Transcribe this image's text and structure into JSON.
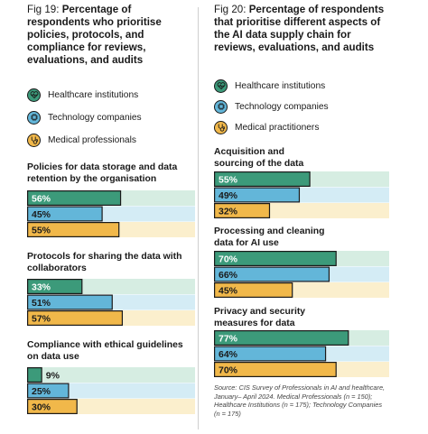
{
  "colors": {
    "healthcare": "#3c9a7a",
    "technology": "#63b6d9",
    "medical": "#f1b84a",
    "track_healthcare": "#d6ede2",
    "track_technology": "#d4ecf5",
    "track_medical": "#fbefcd",
    "border": "#1a1a1a"
  },
  "left": {
    "fig_num": "Fig 19:",
    "title": "Percentage of respondents who prioritise policies, protocols, and compliance for reviews, evaluations, and audits",
    "legend": [
      {
        "label": "Healthcare institutions",
        "icon": "heart-pulse-icon",
        "color_key": "healthcare"
      },
      {
        "label": "Technology companies",
        "icon": "chip-icon",
        "color_key": "technology"
      },
      {
        "label": "Medical professionals",
        "icon": "stethoscope-icon",
        "color_key": "medical"
      }
    ]
  },
  "right": {
    "fig_num": "Fig 20:",
    "title": "Percentage of respondents that prioritise different aspects of the AI data supply chain for reviews, evaluations, and audits",
    "legend": [
      {
        "label": "Healthcare institutions",
        "icon": "heart-pulse-icon",
        "color_key": "healthcare"
      },
      {
        "label": "Technology companies",
        "icon": "chip-icon",
        "color_key": "technology"
      },
      {
        "label": "Medical practitioners",
        "icon": "stethoscope-icon",
        "color_key": "medical"
      }
    ],
    "source": "Source: CIS Survey of Professionals in AI and healthcare, January– April 2024. Medical Professionals (n = 150); Healthcare Institutions (n = 175); Technology Companies (n = 175)"
  },
  "chart_data": [
    {
      "type": "bar",
      "orientation": "horizontal",
      "title": "Policies for data storage and data retention by the organisation",
      "series": [
        {
          "name": "Healthcare institutions",
          "value": 56,
          "label": "56%"
        },
        {
          "name": "Technology companies",
          "value": 45,
          "label": "45%"
        },
        {
          "name": "Medical professionals",
          "value": 55,
          "label": "55%"
        }
      ],
      "xlim": [
        0,
        100
      ]
    },
    {
      "type": "bar",
      "orientation": "horizontal",
      "title": "Protocols for sharing the data with collaborators",
      "series": [
        {
          "name": "Healthcare institutions",
          "value": 33,
          "label": "33%"
        },
        {
          "name": "Technology companies",
          "value": 51,
          "label": "51%"
        },
        {
          "name": "Medical professionals",
          "value": 57,
          "label": "57%"
        }
      ],
      "xlim": [
        0,
        100
      ]
    },
    {
      "type": "bar",
      "orientation": "horizontal",
      "title": "Compliance with ethical guidelines on data use",
      "series": [
        {
          "name": "Healthcare institutions",
          "value": 9,
          "label": "9%"
        },
        {
          "name": "Technology companies",
          "value": 25,
          "label": "25%"
        },
        {
          "name": "Medical professionals",
          "value": 30,
          "label": "30%"
        }
      ],
      "xlim": [
        0,
        100
      ]
    },
    {
      "type": "bar",
      "orientation": "horizontal",
      "title": "Acquisition and sourcing of the data",
      "series": [
        {
          "name": "Healthcare institutions",
          "value": 55,
          "label": "55%"
        },
        {
          "name": "Technology companies",
          "value": 49,
          "label": "49%"
        },
        {
          "name": "Medical practitioners",
          "value": 32,
          "label": "32%"
        }
      ],
      "xlim": [
        0,
        100
      ]
    },
    {
      "type": "bar",
      "orientation": "horizontal",
      "title": "Processing and cleaning data for AI use",
      "series": [
        {
          "name": "Healthcare institutions",
          "value": 70,
          "label": "70%"
        },
        {
          "name": "Technology companies",
          "value": 66,
          "label": "66%"
        },
        {
          "name": "Medical practitioners",
          "value": 45,
          "label": "45%"
        }
      ],
      "xlim": [
        0,
        100
      ]
    },
    {
      "type": "bar",
      "orientation": "horizontal",
      "title": "Privacy and security measures for data",
      "series": [
        {
          "name": "Healthcare institutions",
          "value": 77,
          "label": "77%"
        },
        {
          "name": "Technology companies",
          "value": 64,
          "label": "64%"
        },
        {
          "name": "Medical practitioners",
          "value": 70,
          "label": "70%"
        }
      ],
      "xlim": [
        0,
        100
      ]
    }
  ]
}
